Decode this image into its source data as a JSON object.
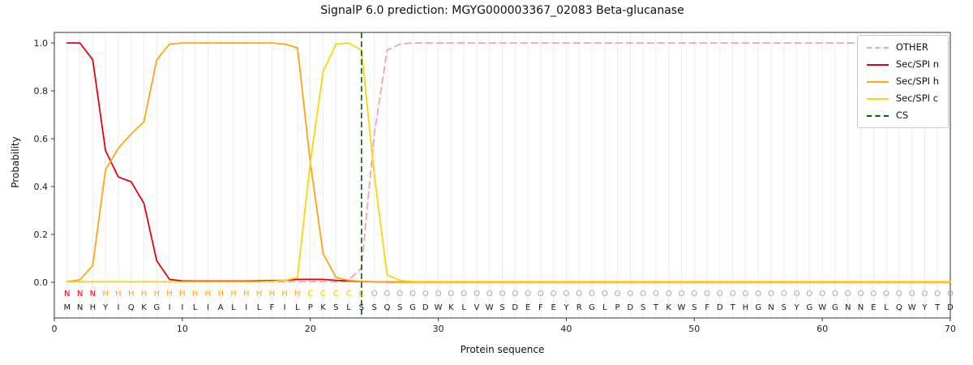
{
  "figure": {
    "title": "SignalP 6.0 prediction: MGYG000003367_02083 Beta-glucanase",
    "xlabel": "Protein sequence",
    "ylabel": "Probability"
  },
  "chart_data": {
    "type": "line",
    "title": "SignalP 6.0 prediction: MGYG000003367_02083 Beta-glucanase",
    "xlabel": "Protein sequence",
    "ylabel": "Probability",
    "x_ticks": [
      0,
      10,
      20,
      30,
      40,
      50,
      60,
      70
    ],
    "y_ticks": [
      0.0,
      0.2,
      0.4,
      0.6,
      0.8,
      1.0
    ],
    "xlim": [
      0,
      70
    ],
    "ylim": [
      0.0,
      1.0
    ],
    "grid": "vertical-per-residue",
    "legend_position": "upper-right",
    "cs_position": 24,
    "sequence": "MNHYIQKGIILIALILFILPKSLSSQSGDWKLVWSDEFEYRGLPDSTKWSFDTHGNSYGWGNNELQWYTD",
    "region_labels": "NNNHHHHHHHHHHHHHHHHCCCCCOOOOOOOOOOOOOOOOOOOOOOOOOOOOOOOOOOOOOOOOOOOOOO",
    "label_colors": {
      "N": "#e8000b",
      "H": "#ffa510",
      "C": "#f2c400",
      "O": "#a6a6a6"
    },
    "sequence_color": "#1a1a1a",
    "series": [
      {
        "name": "OTHER",
        "color": "#f6a2aa",
        "dash": "dashed",
        "values": [
          0.002,
          0.002,
          0.002,
          0.002,
          0.002,
          0.002,
          0.002,
          0.002,
          0.002,
          0.002,
          0.002,
          0.002,
          0.002,
          0.002,
          0.002,
          0.002,
          0.002,
          0.002,
          0.002,
          0.002,
          0.002,
          0.002,
          0.01,
          0.06,
          0.62,
          0.97,
          0.995,
          1.0,
          1.0,
          1.0,
          1.0,
          1.0,
          1.0,
          1.0,
          1.0,
          1.0,
          1.0,
          1.0,
          1.0,
          1.0,
          1.0,
          1.0,
          1.0,
          1.0,
          1.0,
          1.0,
          1.0,
          1.0,
          1.0,
          1.0,
          1.0,
          1.0,
          1.0,
          1.0,
          1.0,
          1.0,
          1.0,
          1.0,
          1.0,
          1.0,
          1.0,
          1.0,
          1.0,
          1.0,
          1.0,
          1.0,
          1.0,
          1.0,
          1.0,
          1.0
        ]
      },
      {
        "name": "Sec/SPI n",
        "color": "#e8000b",
        "dash": "solid",
        "values": [
          1.0,
          1.0,
          0.93,
          0.55,
          0.44,
          0.42,
          0.33,
          0.09,
          0.012,
          0.006,
          0.005,
          0.005,
          0.005,
          0.005,
          0.005,
          0.006,
          0.007,
          0.008,
          0.012,
          0.012,
          0.012,
          0.008,
          0.005,
          0.003,
          0.002,
          0.001,
          0.001,
          0.001,
          0.001,
          0.001,
          0.001,
          0.001,
          0.001,
          0.001,
          0.001,
          0.001,
          0.001,
          0.001,
          0.001,
          0.001,
          0.001,
          0.001,
          0.001,
          0.001,
          0.001,
          0.001,
          0.001,
          0.001,
          0.001,
          0.001,
          0.001,
          0.001,
          0.001,
          0.001,
          0.001,
          0.001,
          0.001,
          0.001,
          0.001,
          0.001,
          0.001,
          0.001,
          0.001,
          0.001,
          0.001,
          0.001,
          0.001,
          0.001,
          0.001,
          0.001
        ]
      },
      {
        "name": "Sec/SPI h",
        "color": "#ffa510",
        "dash": "solid",
        "values": [
          0.003,
          0.01,
          0.07,
          0.47,
          0.56,
          0.62,
          0.67,
          0.93,
          0.995,
          1.0,
          1.0,
          1.0,
          1.0,
          1.0,
          1.0,
          1.0,
          1.0,
          0.995,
          0.98,
          0.5,
          0.12,
          0.02,
          0.008,
          0.004,
          0.002,
          0.001,
          0.001,
          0.001,
          0.001,
          0.001,
          0.001,
          0.001,
          0.001,
          0.001,
          0.001,
          0.001,
          0.001,
          0.001,
          0.001,
          0.001,
          0.001,
          0.001,
          0.001,
          0.001,
          0.001,
          0.001,
          0.001,
          0.001,
          0.001,
          0.001,
          0.001,
          0.001,
          0.001,
          0.001,
          0.001,
          0.001,
          0.001,
          0.001,
          0.001,
          0.001,
          0.001,
          0.001,
          0.001,
          0.001,
          0.001,
          0.001,
          0.001,
          0.001,
          0.001,
          0.001
        ]
      },
      {
        "name": "Sec/SPI c",
        "color": "#ffd500",
        "dash": "solid",
        "values": [
          0.002,
          0.002,
          0.002,
          0.002,
          0.002,
          0.002,
          0.002,
          0.002,
          0.002,
          0.002,
          0.002,
          0.002,
          0.002,
          0.002,
          0.002,
          0.002,
          0.004,
          0.008,
          0.02,
          0.5,
          0.88,
          0.995,
          1.0,
          0.97,
          0.45,
          0.03,
          0.008,
          0.003,
          0.003,
          0.003,
          0.003,
          0.003,
          0.003,
          0.003,
          0.003,
          0.003,
          0.003,
          0.003,
          0.003,
          0.003,
          0.003,
          0.003,
          0.003,
          0.003,
          0.003,
          0.003,
          0.003,
          0.003,
          0.003,
          0.003,
          0.003,
          0.003,
          0.003,
          0.003,
          0.003,
          0.003,
          0.003,
          0.003,
          0.003,
          0.003,
          0.003,
          0.003,
          0.003,
          0.003,
          0.003,
          0.003,
          0.003,
          0.003,
          0.003,
          0.003
        ]
      }
    ],
    "cs": {
      "name": "CS",
      "color": "#006400",
      "dash": "dashed"
    }
  }
}
